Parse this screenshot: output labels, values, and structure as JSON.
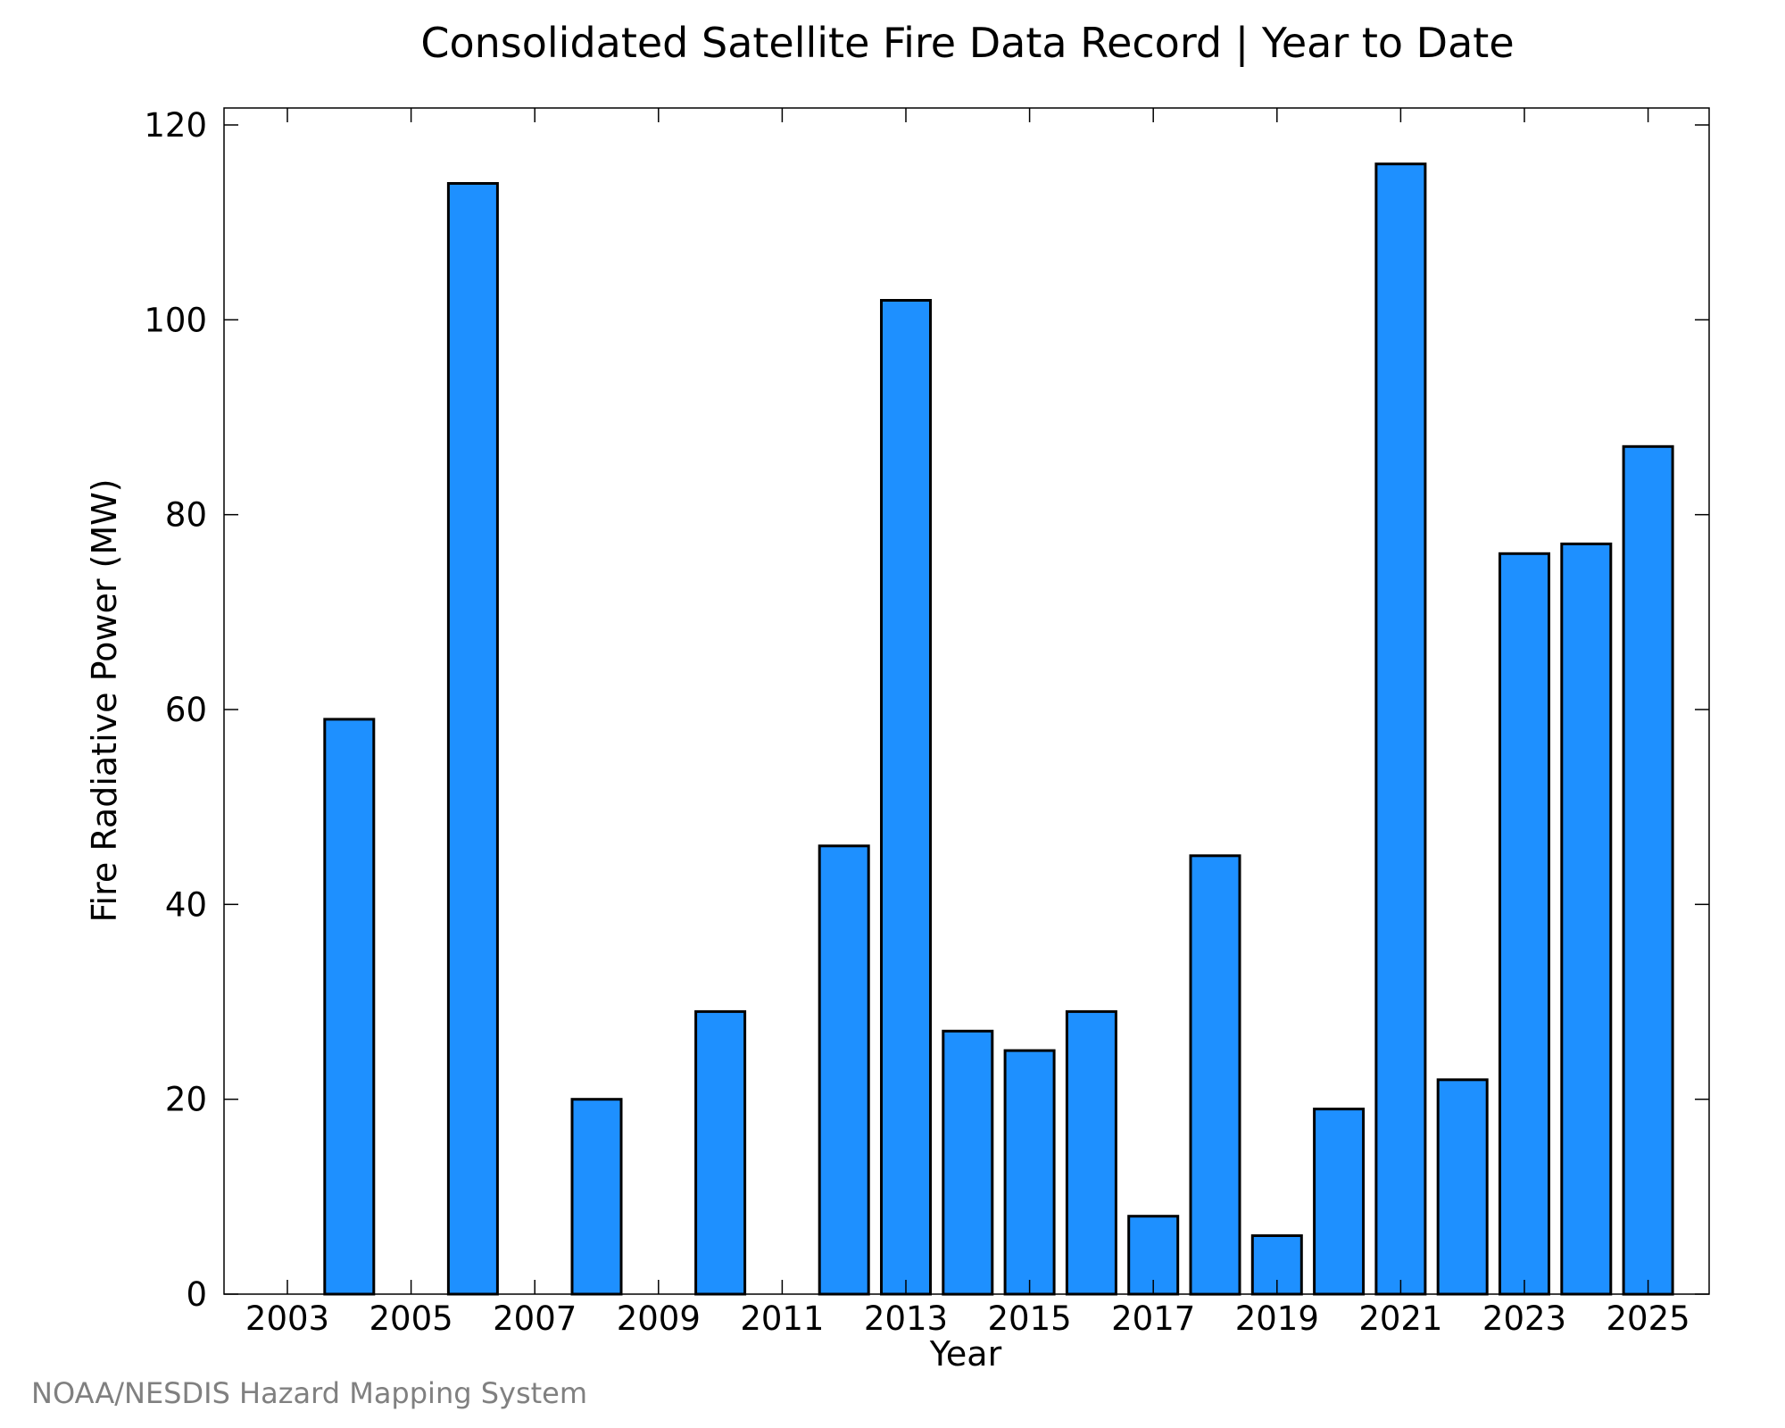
{
  "chart_data": {
    "type": "bar",
    "title": "Consolidated Satellite Fire Data Record | Year to Date",
    "xlabel": "Year",
    "ylabel": "Fire Radiative Power (MW)",
    "ylim": [
      0,
      120
    ],
    "yticks": [
      0,
      20,
      40,
      60,
      80,
      100,
      120
    ],
    "xtick_labels": [
      "2003",
      "2005",
      "2007",
      "2009",
      "2011",
      "2013",
      "2015",
      "2017",
      "2019",
      "2021",
      "2023",
      "2025"
    ],
    "categories": [
      "2003",
      "2004",
      "2005",
      "2006",
      "2007",
      "2008",
      "2009",
      "2010",
      "2011",
      "2012",
      "2013",
      "2014",
      "2015",
      "2016",
      "2017",
      "2018",
      "2019",
      "2020",
      "2021",
      "2022",
      "2023",
      "2024",
      "2025"
    ],
    "values": [
      0,
      59,
      0,
      114,
      0,
      20,
      0,
      29,
      0,
      46,
      102,
      27,
      25,
      29,
      8,
      45,
      6,
      19,
      116,
      22,
      76,
      77,
      87
    ],
    "bar_color": "#1e90ff",
    "grid": false,
    "legend": "none"
  },
  "credit": "NOAA/NESDIS Hazard Mapping System"
}
